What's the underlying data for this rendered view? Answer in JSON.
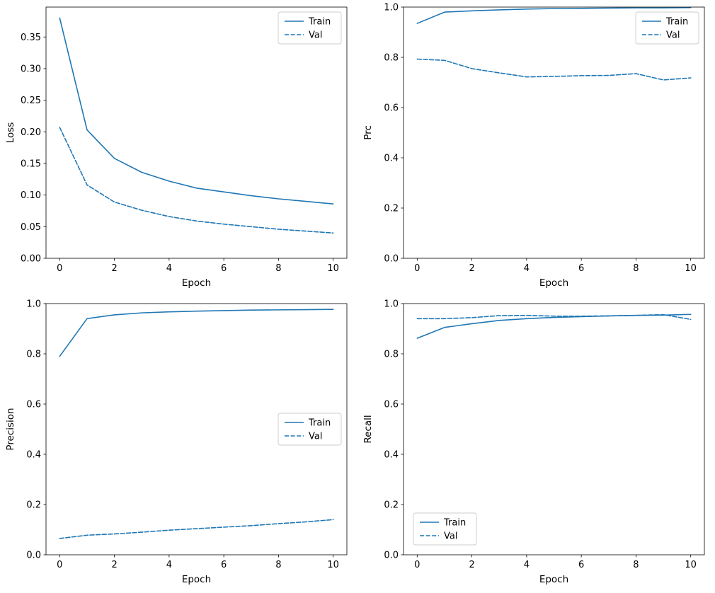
{
  "figure": {
    "background": "#ffffff",
    "accent_color": "#1f77b4",
    "spine_color": "#000000",
    "legend_border_color": "#cccccc",
    "legend_labels": [
      "Train",
      "Val"
    ]
  },
  "chart_data": [
    {
      "id": "loss",
      "type": "line",
      "title": "",
      "xlabel": "Epoch",
      "ylabel": "Loss",
      "x": [
        0,
        1,
        2,
        3,
        4,
        5,
        6,
        7,
        8,
        9,
        10
      ],
      "xlim": [
        -0.5,
        10.5
      ],
      "ylim": [
        0,
        0.3973
      ],
      "xticks": [
        0,
        2,
        4,
        6,
        8,
        10
      ],
      "xtick_labels": [
        "0",
        "2",
        "4",
        "6",
        "8",
        "10"
      ],
      "yticks": [
        0.0,
        0.05,
        0.1,
        0.15,
        0.2,
        0.25,
        0.3,
        0.35
      ],
      "ytick_labels": [
        "0.00",
        "0.05",
        "0.10",
        "0.15",
        "0.20",
        "0.25",
        "0.30",
        "0.35"
      ],
      "grid": false,
      "legend_position": "top-right",
      "series": [
        {
          "name": "Train",
          "style": "solid",
          "values": [
            0.38,
            0.203,
            0.158,
            0.136,
            0.122,
            0.111,
            0.105,
            0.099,
            0.094,
            0.09,
            0.086
          ]
        },
        {
          "name": "Val",
          "style": "dashed",
          "values": [
            0.207,
            0.116,
            0.089,
            0.076,
            0.066,
            0.059,
            0.054,
            0.05,
            0.046,
            0.043,
            0.04
          ]
        }
      ]
    },
    {
      "id": "prc",
      "type": "line",
      "title": "",
      "xlabel": "Epoch",
      "ylabel": "Prc",
      "x": [
        0,
        1,
        2,
        3,
        4,
        5,
        6,
        7,
        8,
        9,
        10
      ],
      "xlim": [
        -0.5,
        10.5
      ],
      "ylim": [
        0,
        1.0
      ],
      "xticks": [
        0,
        2,
        4,
        6,
        8,
        10
      ],
      "xtick_labels": [
        "0",
        "2",
        "4",
        "6",
        "8",
        "10"
      ],
      "yticks": [
        0.0,
        0.2,
        0.4,
        0.6,
        0.8,
        1.0
      ],
      "ytick_labels": [
        "0.0",
        "0.2",
        "0.4",
        "0.6",
        "0.8",
        "1.0"
      ],
      "grid": false,
      "legend_position": "top-right",
      "series": [
        {
          "name": "Train",
          "style": "solid",
          "values": [
            0.935,
            0.98,
            0.985,
            0.989,
            0.992,
            0.994,
            0.995,
            0.996,
            0.997,
            0.997,
            0.998
          ]
        },
        {
          "name": "Val",
          "style": "dashed",
          "values": [
            0.793,
            0.788,
            0.755,
            0.738,
            0.722,
            0.724,
            0.727,
            0.728,
            0.735,
            0.71,
            0.718
          ]
        }
      ]
    },
    {
      "id": "precision",
      "type": "line",
      "title": "",
      "xlabel": "Epoch",
      "ylabel": "Precision",
      "x": [
        0,
        1,
        2,
        3,
        4,
        5,
        6,
        7,
        8,
        9,
        10
      ],
      "xlim": [
        -0.5,
        10.5
      ],
      "ylim": [
        0,
        1.0
      ],
      "xticks": [
        0,
        2,
        4,
        6,
        8,
        10
      ],
      "xtick_labels": [
        "0",
        "2",
        "4",
        "6",
        "8",
        "10"
      ],
      "yticks": [
        0.0,
        0.2,
        0.4,
        0.6,
        0.8,
        1.0
      ],
      "ytick_labels": [
        "0.0",
        "0.2",
        "0.4",
        "0.6",
        "0.8",
        "1.0"
      ],
      "grid": false,
      "legend_position": "center-right",
      "series": [
        {
          "name": "Train",
          "style": "solid",
          "values": [
            0.79,
            0.94,
            0.955,
            0.963,
            0.967,
            0.97,
            0.972,
            0.974,
            0.975,
            0.976,
            0.977
          ]
        },
        {
          "name": "Val",
          "style": "dashed",
          "values": [
            0.065,
            0.078,
            0.083,
            0.09,
            0.098,
            0.104,
            0.11,
            0.116,
            0.124,
            0.131,
            0.14
          ]
        }
      ]
    },
    {
      "id": "recall",
      "type": "line",
      "title": "",
      "xlabel": "Epoch",
      "ylabel": "Recall",
      "x": [
        0,
        1,
        2,
        3,
        4,
        5,
        6,
        7,
        8,
        9,
        10
      ],
      "xlim": [
        -0.5,
        10.5
      ],
      "ylim": [
        0,
        1.0
      ],
      "xticks": [
        0,
        2,
        4,
        6,
        8,
        10
      ],
      "xtick_labels": [
        "0",
        "2",
        "4",
        "6",
        "8",
        "10"
      ],
      "yticks": [
        0.0,
        0.2,
        0.4,
        0.6,
        0.8,
        1.0
      ],
      "ytick_labels": [
        "0.0",
        "0.2",
        "0.4",
        "0.6",
        "0.8",
        "1.0"
      ],
      "grid": false,
      "legend_position": "bottom-left",
      "series": [
        {
          "name": "Train",
          "style": "solid",
          "values": [
            0.862,
            0.905,
            0.92,
            0.933,
            0.94,
            0.945,
            0.948,
            0.951,
            0.953,
            0.954,
            0.957
          ]
        },
        {
          "name": "Val",
          "style": "dashed",
          "values": [
            0.94,
            0.94,
            0.944,
            0.952,
            0.953,
            0.95,
            0.95,
            0.951,
            0.953,
            0.956,
            0.937
          ]
        }
      ]
    }
  ]
}
